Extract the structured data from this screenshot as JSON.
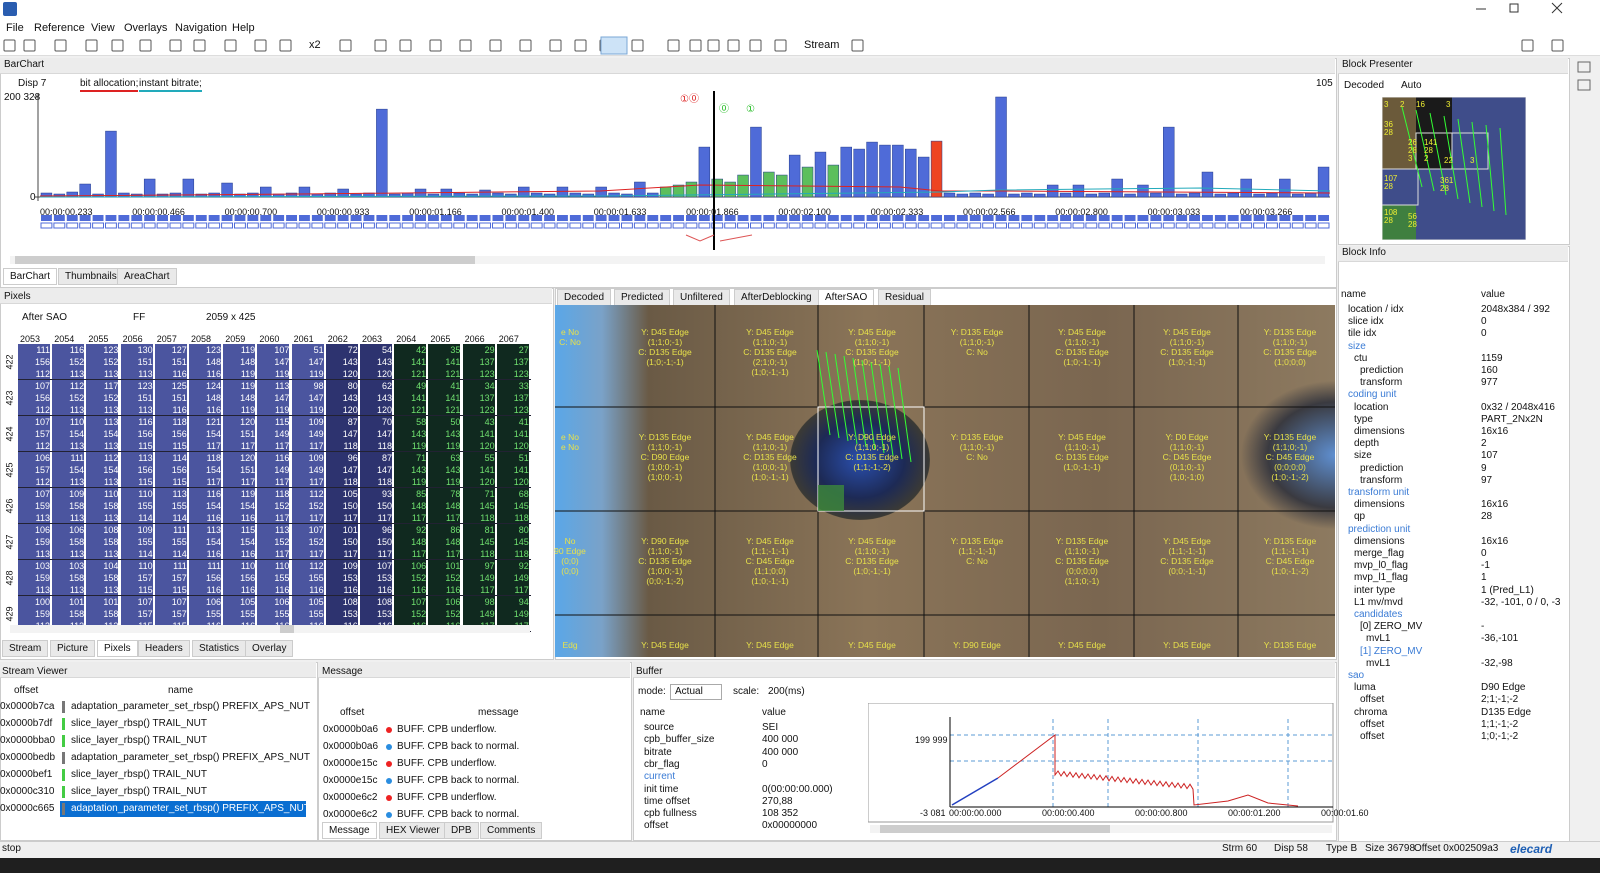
{
  "menu": [
    "File",
    "Reference",
    "View",
    "Overlays",
    "Navigation",
    "Help"
  ],
  "toolbar": {
    "zoom": "x2",
    "stream": "Stream"
  },
  "barchart": {
    "title": "BarChart",
    "disp": "Disp 7",
    "legend": [
      "bit allocation;",
      "instant bitrate;"
    ],
    "ymax": {
      "value": 200328,
      "label": "200 328"
    },
    "ymin": 0,
    "right_label": "105",
    "markers": [
      "①⓪",
      "⓪",
      "①"
    ],
    "x_labels": [
      "00:00:00.233",
      "00:00:00.466",
      "00:00:00.700",
      "00:00:00.933",
      "00:00:01.166",
      "00:00:01.400",
      "00:00:01.633",
      "00:00:01.866",
      "00:00:02.100",
      "00:00:02.333",
      "00:00:02.566",
      "00:00:02.800",
      "00:00:03.033",
      "00:00:03.266"
    ],
    "values": [
      8000,
      6000,
      10000,
      26000,
      6000,
      132000,
      8000,
      6000,
      36000,
      6000,
      8000,
      36000,
      6000,
      8000,
      28000,
      6000,
      8000,
      20000,
      6000,
      8000,
      20000,
      6000,
      8000,
      16000,
      6000,
      8000,
      176000,
      6000,
      8000,
      16000,
      6000,
      16000,
      8000,
      6000,
      14000,
      8000,
      6000,
      20000,
      8000,
      6000,
      20000,
      8000,
      6000,
      20000,
      8000,
      6000,
      30000,
      8000,
      20000,
      24000,
      30000,
      100000,
      36000,
      30000,
      44000,
      140000,
      50000,
      44000,
      84000,
      60000,
      90000,
      64000,
      100000,
      96000,
      110000,
      104000,
      104000,
      96000,
      80000,
      112000,
      8000,
      6000,
      8000,
      6000,
      200328,
      6000,
      8000,
      6000,
      24000,
      8000,
      24000,
      6000,
      8000,
      36000,
      6000,
      24000,
      8000,
      140000,
      6000,
      8000,
      50000,
      6000,
      8000,
      36000,
      6000,
      8000,
      36000,
      6000,
      8000,
      60000
    ],
    "kinds": "bbbbbbbbbbbbbbbbbbbbbbbbbbbbbbbbbbbbbbbbbbbbbbbbgggbgggbggbgbgbbbbbbbrbbbbbbbbbbbbbbbbbbbbbbbbbbbbbb",
    "palette": {
      "b": "#4f6bd8",
      "g": "#5cbf5c",
      "r": "#ee4422"
    }
  },
  "tabs_top": [
    "BarChart",
    "Thumbnails",
    "AreaChart"
  ],
  "pixels": {
    "title": "Pixels",
    "mode": "After SAO",
    "ff": "FF",
    "size": "2059 x 425",
    "columns": [
      2053,
      2054,
      2055,
      2056,
      2057,
      2058,
      2059,
      2060,
      2061,
      2062,
      2063,
      2064,
      2065,
      2066,
      2067
    ],
    "rows": [
      {
        "label": "422",
        "lines": [
          [
            111,
            116,
            123,
            130,
            127,
            123,
            119,
            107,
            51,
            72,
            54,
            42,
            35,
            29,
            27
          ],
          [
            156,
            152,
            152,
            151,
            151,
            148,
            148,
            147,
            147,
            143,
            143,
            141,
            141,
            137,
            137
          ],
          [
            112,
            113,
            113,
            113,
            116,
            116,
            119,
            119,
            119,
            120,
            120,
            121,
            121,
            123,
            123
          ]
        ]
      },
      {
        "label": "423",
        "lines": [
          [
            107,
            112,
            117,
            123,
            125,
            124,
            119,
            113,
            98,
            80,
            62,
            49,
            41,
            34,
            33
          ],
          [
            156,
            152,
            152,
            151,
            151,
            148,
            148,
            147,
            147,
            143,
            143,
            141,
            141,
            137,
            137
          ],
          [
            112,
            113,
            113,
            113,
            116,
            116,
            119,
            119,
            119,
            120,
            120,
            121,
            121,
            123,
            123
          ]
        ]
      },
      {
        "label": "424",
        "lines": [
          [
            107,
            110,
            113,
            116,
            118,
            121,
            120,
            115,
            109,
            87,
            70,
            58,
            50,
            43,
            41
          ],
          [
            157,
            154,
            154,
            156,
            156,
            154,
            151,
            149,
            149,
            147,
            147,
            143,
            143,
            141,
            141
          ],
          [
            112,
            113,
            113,
            115,
            115,
            117,
            117,
            117,
            117,
            118,
            118,
            119,
            119,
            120,
            120
          ]
        ]
      },
      {
        "label": "425",
        "lines": [
          [
            106,
            111,
            112,
            113,
            114,
            118,
            120,
            116,
            109,
            96,
            87,
            71,
            63,
            55,
            51
          ],
          [
            157,
            154,
            154,
            156,
            156,
            154,
            151,
            149,
            149,
            147,
            147,
            143,
            143,
            141,
            141
          ],
          [
            112,
            113,
            113,
            115,
            115,
            117,
            117,
            117,
            117,
            118,
            118,
            119,
            119,
            120,
            120
          ]
        ]
      },
      {
        "label": "426",
        "lines": [
          [
            107,
            109,
            110,
            110,
            113,
            116,
            119,
            118,
            112,
            105,
            93,
            85,
            78,
            71,
            68
          ],
          [
            159,
            158,
            158,
            155,
            155,
            154,
            154,
            152,
            152,
            150,
            150,
            148,
            148,
            145,
            145
          ],
          [
            113,
            113,
            113,
            114,
            114,
            116,
            116,
            117,
            117,
            117,
            117,
            117,
            117,
            118,
            118
          ]
        ]
      },
      {
        "label": "427",
        "lines": [
          [
            106,
            106,
            108,
            109,
            111,
            113,
            115,
            113,
            107,
            101,
            96,
            92,
            86,
            81,
            80
          ],
          [
            159,
            158,
            158,
            155,
            155,
            154,
            154,
            152,
            152,
            150,
            150,
            148,
            148,
            145,
            145
          ],
          [
            113,
            113,
            113,
            114,
            114,
            116,
            116,
            117,
            117,
            117,
            117,
            117,
            117,
            118,
            118
          ]
        ]
      },
      {
        "label": "428",
        "lines": [
          [
            103,
            103,
            104,
            110,
            111,
            111,
            110,
            110,
            112,
            109,
            107,
            106,
            101,
            97,
            92
          ],
          [
            159,
            158,
            158,
            157,
            157,
            156,
            156,
            155,
            155,
            153,
            153,
            152,
            152,
            149,
            149
          ],
          [
            113,
            113,
            113,
            115,
            115,
            116,
            116,
            116,
            116,
            116,
            116,
            116,
            116,
            117,
            117
          ]
        ]
      },
      {
        "label": "429",
        "lines": [
          [
            100,
            101,
            101,
            107,
            107,
            106,
            105,
            106,
            105,
            108,
            108,
            107,
            106,
            98,
            94
          ],
          [
            159,
            158,
            158,
            157,
            157,
            155,
            155,
            155,
            155,
            153,
            153,
            152,
            152,
            149,
            149
          ],
          [
            113,
            113,
            113,
            115,
            115,
            116,
            116,
            116,
            116,
            116,
            116,
            116,
            116,
            117,
            117
          ]
        ]
      }
    ]
  },
  "tabs_mid": [
    "Stream",
    "Picture",
    "Pixels",
    "Headers",
    "Statistics",
    "Overlay"
  ],
  "video": {
    "tabs": [
      "Decoded",
      "Predicted",
      "Unfiltered",
      "AfterDeblocking",
      "AfterSAO",
      "Residual"
    ],
    "cells": [
      [
        [
          "e No",
          "C: No"
        ],
        [
          "Y: D45 Edge",
          "(1;1;0;-1)",
          "C: D135 Edge",
          "(1;0;-1;-1)"
        ],
        [
          "Y: D45 Edge",
          "(1;1;0;-1)",
          "C: D135 Edge",
          "(2;1;0;-1)",
          "(1;0;-1;-1)"
        ],
        [
          "Y: D45 Edge",
          "(1;1;0;-1)",
          "C: D135 Edge",
          "(1;0;-1;-1)"
        ],
        [
          "Y: D135 Edge",
          "(1;1;0;-1)",
          "C: No"
        ],
        [
          "Y: D45 Edge",
          "(1;1;0;-1)",
          "C: D135 Edge",
          "(1;0;-1;-1)"
        ],
        [
          "Y: D45 Edge",
          "(1;1;0;-1)",
          "C: D135 Edge",
          "(1;0;-1;-1)"
        ],
        [
          "Y: D135 Edge",
          "(1;1;0;-1)",
          "C: D135 Edge",
          "(1;0;0;0)"
        ]
      ],
      [
        [
          "e No",
          "e No"
        ],
        [
          "Y: D135 Edge",
          "(1;1;0;-1)",
          "C: D90 Edge",
          "(1;0;0;-1)",
          "(1;0;0;-1)"
        ],
        [
          "Y: D45 Edge",
          "(1;1;0;-1)",
          "C: D135 Edge",
          "(1;0;0;-1)",
          "(1;0;-1;-1)"
        ],
        [
          "Y: D90 Edge",
          "(1;1;0;-1)",
          "C: D135 Edge",
          "(1;1;-1;-2)"
        ],
        [
          "Y: D135 Edge",
          "(1;1;0;-1)",
          "C: No"
        ],
        [
          "Y: D45 Edge",
          "(1;1;0;-1)",
          "C: D135 Edge",
          "(1;0;-1;-1)"
        ],
        [
          "Y: D0 Edge",
          "(1;1;0;-1)",
          "C: D45 Edge",
          "(0;1;0;-1)",
          "(1;0;-1;0)"
        ],
        [
          "Y: D135 Edge",
          "(1;1;0;-1)",
          "C: D45 Edge",
          "(0;0;0;0)",
          "(1;0;-1;-2)"
        ]
      ],
      [
        [
          "No",
          "90 Edge",
          "(0;0)",
          "(0;0)"
        ],
        [
          "Y: D90 Edge",
          "(1;1;0;-1)",
          "C: D135 Edge",
          "(1;0;0;-1)",
          "(0;0;-1;-2)"
        ],
        [
          "Y: D45 Edge",
          "(1;1;-1;-1)",
          "C: D45 Edge",
          "(1;1;0;0)",
          "(1;0;-1;-1)"
        ],
        [
          "Y: D45 Edge",
          "(1;1;0;-1)",
          "C: D135 Edge",
          "(1;0;-1;-1)"
        ],
        [
          "Y: D135 Edge",
          "(1;1;-1;-1)",
          "C: No"
        ],
        [
          "Y: D135 Edge",
          "(1;1;0;-1)",
          "C: D135 Edge",
          "(0;0;0;0)",
          "(1;1;0;-1)"
        ],
        [
          "Y: D45 Edge",
          "(1;1;-1;-1)",
          "C: D135 Edge",
          "(0;0;-1;-1)"
        ],
        [
          "Y: D135 Edge",
          "(1;1;-1;-1)",
          "C: D45 Edge",
          "(1;0;-1;-2)"
        ]
      ],
      [
        [
          "Edg"
        ],
        [
          "Y: D45 Edge"
        ],
        [
          "Y: D45 Edge"
        ],
        [
          "Y: D45 Edge"
        ],
        [
          "Y: D90 Edge"
        ],
        [
          "Y: D45 Edge"
        ],
        [
          "Y: D45 Edge"
        ],
        [
          "Y: D135 Edge"
        ]
      ]
    ]
  },
  "block_presenter": {
    "title": "Block Presenter",
    "view": "Decoded",
    "scale": "Auto",
    "labels": [
      "3",
      "2",
      "16",
      "3",
      "36",
      "28",
      "26",
      "28",
      "141",
      "28",
      "3",
      "2",
      "22",
      "3",
      "107",
      "28",
      "361",
      "28",
      "108",
      "28",
      "56",
      "28"
    ]
  },
  "block_info": {
    "title": "Block Info",
    "header": [
      "name",
      "value"
    ],
    "rows": [
      {
        "name": "location / idx",
        "value": "2048x384 / 392"
      },
      {
        "name": "slice idx",
        "value": "0"
      },
      {
        "name": "tile idx",
        "value": "0"
      },
      {
        "name": "size",
        "children": [
          {
            "name": "ctu",
            "value": "1159",
            "children": [
              {
                "name": "prediction",
                "value": "160"
              },
              {
                "name": "transform",
                "value": "977"
              }
            ]
          }
        ]
      },
      {
        "name": "coding unit",
        "children": [
          {
            "name": "location",
            "value": "0x32 / 2048x416"
          },
          {
            "name": "type",
            "value": "PART_2Nx2N"
          },
          {
            "name": "dimensions",
            "value": "16x16"
          },
          {
            "name": "depth",
            "value": "2"
          },
          {
            "name": "size",
            "value": "107",
            "children": [
              {
                "name": "prediction",
                "value": "9"
              },
              {
                "name": "transform",
                "value": "97"
              }
            ]
          }
        ]
      },
      {
        "name": "transform unit",
        "children": [
          {
            "name": "dimensions",
            "value": "16x16"
          },
          {
            "name": "qp",
            "value": "28"
          }
        ]
      },
      {
        "name": "prediction unit",
        "children": [
          {
            "name": "dimensions",
            "value": "16x16"
          },
          {
            "name": "merge_flag",
            "value": "0"
          },
          {
            "name": "mvp_l0_flag",
            "value": "-1"
          },
          {
            "name": "mvp_l1_flag",
            "value": "1"
          },
          {
            "name": "inter type",
            "value": "1 (Pred_L1)"
          },
          {
            "name": "L1 mv/mvd",
            "value": "-32, -101, 0 / 0, -3"
          },
          {
            "name": "candidates",
            "children": [
              {
                "name": "[0] ZERO_MV",
                "value": "-",
                "children": [
                  {
                    "name": "mvL1",
                    "value": "-36,-101"
                  }
                ]
              },
              {
                "name": "[1] ZERO_MV",
                "children": [
                  {
                    "name": "mvL1",
                    "value": "-32,-98"
                  }
                ]
              }
            ]
          }
        ]
      },
      {
        "name": "sao",
        "children": [
          {
            "name": "luma",
            "value": "D90 Edge",
            "children": [
              {
                "name": "offset",
                "value": "2;1;-1;-2"
              }
            ]
          },
          {
            "name": "chroma",
            "value": "D135 Edge",
            "children": [
              {
                "name": "offset",
                "value": "1;1;-1;-2"
              },
              {
                "name": "offset",
                "value": "1;0;-1;-2"
              }
            ]
          }
        ]
      }
    ]
  },
  "stream_viewer": {
    "title": "Stream Viewer",
    "header": [
      "offset",
      "name"
    ],
    "selected": 6,
    "rows": [
      [
        "0x0000b7ca",
        "adaptation_parameter_set_rbsp() PREFIX_APS_NUT"
      ],
      [
        "0x0000b7df",
        "slice_layer_rbsp() TRAIL_NUT"
      ],
      [
        "0x0000bba0",
        "slice_layer_rbsp() TRAIL_NUT"
      ],
      [
        "0x0000bedb",
        "adaptation_parameter_set_rbsp() PREFIX_APS_NUT"
      ],
      [
        "0x0000bef1",
        "slice_layer_rbsp() TRAIL_NUT"
      ],
      [
        "0x0000c310",
        "slice_layer_rbsp() TRAIL_NUT"
      ],
      [
        "0x0000c665",
        "adaptation_parameter_set_rbsp() PREFIX_APS_NUT"
      ]
    ]
  },
  "message": {
    "title": "Message",
    "header": [
      "offset",
      "message"
    ],
    "rows": [
      [
        "0x0000b0a6",
        "BUFF. CPB underflow."
      ],
      [
        "0x0000b0a6",
        "BUFF. CPB back to normal."
      ],
      [
        "0x0000e15c",
        "BUFF. CPB underflow."
      ],
      [
        "0x0000e15c",
        "BUFF. CPB back to normal."
      ],
      [
        "0x0000e6c2",
        "BUFF. CPB underflow."
      ],
      [
        "0x0000e6c2",
        "BUFF. CPB back to normal."
      ]
    ],
    "tabs": [
      "Message",
      "HEX Viewer",
      "DPB",
      "Comments"
    ]
  },
  "buffer": {
    "title": "Buffer",
    "mode_label": "mode:",
    "mode": "Actual",
    "scale_label": "scale:",
    "scale": "200(ms)",
    "header": [
      "name",
      "value"
    ],
    "rows": [
      [
        "source",
        "SEI"
      ],
      [
        "cpb_buffer_size",
        "400 000"
      ],
      [
        "bitrate",
        "400 000"
      ],
      [
        "cbr_flag",
        "0"
      ],
      [
        "current"
      ],
      [
        "init time",
        "0(00:00:00.000)"
      ],
      [
        "time offset",
        "270,88"
      ],
      [
        "cpb fullness",
        "108 352"
      ],
      [
        "offset",
        "0x00000000"
      ]
    ],
    "y_labels": [
      "199 999",
      "-3 081"
    ],
    "x_labels": [
      "00:00:00.000",
      "00:00:00.400",
      "00:00:00.800",
      "00:00:01.200",
      "00:00:01.60"
    ]
  },
  "status": [
    "stop",
    "Strm 60",
    "Disp 58",
    "Type B",
    "Size 36798",
    "Offset 0x002509a3",
    "elecard"
  ]
}
